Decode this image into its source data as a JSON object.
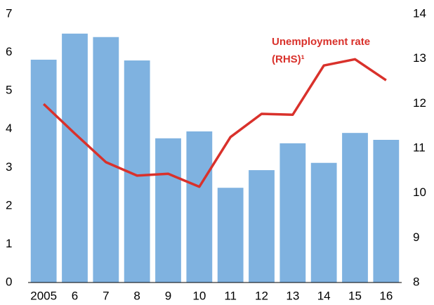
{
  "chart_data": {
    "type": "bar_line",
    "categories": [
      "2005",
      "6",
      "7",
      "8",
      "9",
      "10",
      "11",
      "12",
      "13",
      "14",
      "15",
      "16"
    ],
    "series": [
      {
        "type": "bar",
        "color": "#7fb2e0",
        "values": [
          5.81,
          6.49,
          6.4,
          5.79,
          3.76,
          3.94,
          2.47,
          2.93,
          3.63,
          3.12,
          3.9,
          3.72
        ]
      },
      {
        "type": "line",
        "axis": "y2",
        "color": "#d9312b",
        "values": [
          11.99,
          11.33,
          10.69,
          10.39,
          10.43,
          10.14,
          11.25,
          11.77,
          11.75,
          12.85,
          12.99,
          12.52
        ]
      }
    ],
    "annotations": [
      "Unemployment rate",
      "(RHS)¹"
    ],
    "ylim": [
      0,
      7
    ],
    "yticks": [
      0,
      1,
      2,
      3,
      4,
      5,
      6,
      7
    ],
    "y2lim": [
      8,
      14
    ],
    "y2ticks": [
      8,
      9,
      10,
      11,
      12,
      13,
      14
    ],
    "grid": false
  }
}
